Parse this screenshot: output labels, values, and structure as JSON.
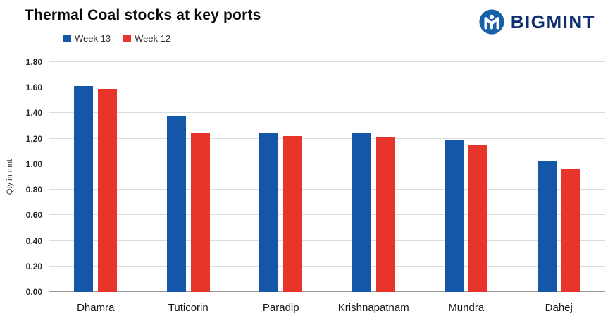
{
  "header": {
    "title": "Thermal Coal stocks at key ports",
    "brand_name": "BIGMINT"
  },
  "colors": {
    "series1": "#1457a8",
    "series2": "#e8352b",
    "brand_navy": "#0d2f6e",
    "logo_blue": "#1560a8"
  },
  "chart_data": {
    "type": "bar",
    "title": "Thermal Coal stocks at key ports",
    "categories": [
      "Dhamra",
      "Tuticorin",
      "Paradip",
      "Krishnapatnam",
      "Mundra",
      "Dahej"
    ],
    "series": [
      {
        "name": "Week 13",
        "color": "#1457a8",
        "values": [
          1.61,
          1.38,
          1.24,
          1.24,
          1.19,
          1.02
        ]
      },
      {
        "name": "Week 12",
        "color": "#e8352b",
        "values": [
          1.59,
          1.25,
          1.22,
          1.21,
          1.15,
          0.96
        ]
      }
    ],
    "xlabel": "",
    "ylabel": "Qty in mnt",
    "ylim": [
      0.0,
      1.8
    ],
    "ytick_step": 0.2,
    "ytick_format_decimals": 2,
    "grid": true,
    "legend_position": "top-left"
  }
}
